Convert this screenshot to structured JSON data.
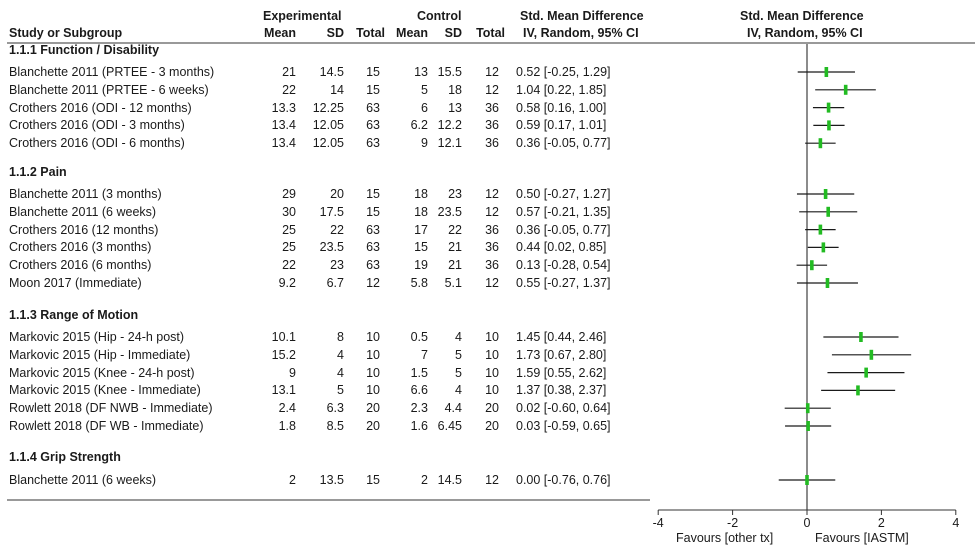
{
  "header": {
    "study_col": "Study or Subgroup",
    "experimental": "Experimental",
    "control": "Control",
    "smd_title": "Std. Mean Difference",
    "smd_method": "IV, Random, 95% CI",
    "plot_title": "Std. Mean Difference",
    "plot_method": "IV, Random, 95% CI",
    "mean": "Mean",
    "sd": "SD",
    "total": "Total"
  },
  "favours_left": "Favours [other tx]",
  "favours_right": "Favours [IASTM]",
  "chart_data": {
    "type": "forest",
    "xlim": [
      -4,
      4
    ],
    "xticks": [
      "-4",
      "-2",
      "0",
      "2",
      "4"
    ],
    "tick_values": [
      -4,
      -2,
      0,
      2,
      4
    ],
    "marker_color": "#22bb22",
    "groups": [
      {
        "title": "1.1.1 Function / Disability",
        "studies": [
          {
            "name": "Blanchette 2011 (PRTEE - 3 months)",
            "exp_mean": "21",
            "exp_sd": "14.5",
            "exp_total": "15",
            "ctrl_mean": "13",
            "ctrl_sd": "15.5",
            "ctrl_total": "12",
            "ci_text": "0.52 [-0.25, 1.29]",
            "smd": 0.52,
            "lower": -0.25,
            "upper": 1.29
          },
          {
            "name": "Blanchette 2011 (PRTEE - 6 weeks)",
            "exp_mean": "22",
            "exp_sd": "14",
            "exp_total": "15",
            "ctrl_mean": "5",
            "ctrl_sd": "18",
            "ctrl_total": "12",
            "ci_text": "1.04 [0.22, 1.85]",
            "smd": 1.04,
            "lower": 0.22,
            "upper": 1.85
          },
          {
            "name": "Crothers 2016 (ODI - 12 months)",
            "exp_mean": "13.3",
            "exp_sd": "12.25",
            "exp_total": "63",
            "ctrl_mean": "6",
            "ctrl_sd": "13",
            "ctrl_total": "36",
            "ci_text": "0.58 [0.16, 1.00]",
            "smd": 0.58,
            "lower": 0.16,
            "upper": 1.0
          },
          {
            "name": "Crothers 2016 (ODI - 3 months)",
            "exp_mean": "13.4",
            "exp_sd": "12.05",
            "exp_total": "63",
            "ctrl_mean": "6.2",
            "ctrl_sd": "12.2",
            "ctrl_total": "36",
            "ci_text": "0.59 [0.17, 1.01]",
            "smd": 0.59,
            "lower": 0.17,
            "upper": 1.01
          },
          {
            "name": "Crothers 2016 (ODI - 6 months)",
            "exp_mean": "13.4",
            "exp_sd": "12.05",
            "exp_total": "63",
            "ctrl_mean": "9",
            "ctrl_sd": "12.1",
            "ctrl_total": "36",
            "ci_text": "0.36 [-0.05, 0.77]",
            "smd": 0.36,
            "lower": -0.05,
            "upper": 0.77
          }
        ]
      },
      {
        "title": "1.1.2 Pain",
        "studies": [
          {
            "name": "Blanchette 2011 (3 months)",
            "exp_mean": "29",
            "exp_sd": "20",
            "exp_total": "15",
            "ctrl_mean": "18",
            "ctrl_sd": "23",
            "ctrl_total": "12",
            "ci_text": "0.50 [-0.27, 1.27]",
            "smd": 0.5,
            "lower": -0.27,
            "upper": 1.27
          },
          {
            "name": "Blanchette 2011 (6 weeks)",
            "exp_mean": "30",
            "exp_sd": "17.5",
            "exp_total": "15",
            "ctrl_mean": "18",
            "ctrl_sd": "23.5",
            "ctrl_total": "12",
            "ci_text": "0.57 [-0.21, 1.35]",
            "smd": 0.57,
            "lower": -0.21,
            "upper": 1.35
          },
          {
            "name": "Crothers 2016 (12 months)",
            "exp_mean": "25",
            "exp_sd": "22",
            "exp_total": "63",
            "ctrl_mean": "17",
            "ctrl_sd": "22",
            "ctrl_total": "36",
            "ci_text": "0.36 [-0.05, 0.77]",
            "smd": 0.36,
            "lower": -0.05,
            "upper": 0.77
          },
          {
            "name": "Crothers 2016 (3 months)",
            "exp_mean": "25",
            "exp_sd": "23.5",
            "exp_total": "63",
            "ctrl_mean": "15",
            "ctrl_sd": "21",
            "ctrl_total": "36",
            "ci_text": "0.44 [0.02, 0.85]",
            "smd": 0.44,
            "lower": 0.02,
            "upper": 0.85
          },
          {
            "name": "Crothers 2016 (6 months)",
            "exp_mean": "22",
            "exp_sd": "23",
            "exp_total": "63",
            "ctrl_mean": "19",
            "ctrl_sd": "21",
            "ctrl_total": "36",
            "ci_text": "0.13 [-0.28, 0.54]",
            "smd": 0.13,
            "lower": -0.28,
            "upper": 0.54
          },
          {
            "name": "Moon 2017 (Immediate)",
            "exp_mean": "9.2",
            "exp_sd": "6.7",
            "exp_total": "12",
            "ctrl_mean": "5.8",
            "ctrl_sd": "5.1",
            "ctrl_total": "12",
            "ci_text": "0.55 [-0.27, 1.37]",
            "smd": 0.55,
            "lower": -0.27,
            "upper": 1.37
          }
        ]
      },
      {
        "title": "1.1.3 Range of Motion",
        "studies": [
          {
            "name": "Markovic 2015 (Hip - 24-h post)",
            "exp_mean": "10.1",
            "exp_sd": "8",
            "exp_total": "10",
            "ctrl_mean": "0.5",
            "ctrl_sd": "4",
            "ctrl_total": "10",
            "ci_text": "1.45 [0.44, 2.46]",
            "smd": 1.45,
            "lower": 0.44,
            "upper": 2.46
          },
          {
            "name": "Markovic 2015 (Hip - Immediate)",
            "exp_mean": "15.2",
            "exp_sd": "4",
            "exp_total": "10",
            "ctrl_mean": "7",
            "ctrl_sd": "5",
            "ctrl_total": "10",
            "ci_text": "1.73 [0.67, 2.80]",
            "smd": 1.73,
            "lower": 0.67,
            "upper": 2.8
          },
          {
            "name": "Markovic 2015 (Knee - 24-h post)",
            "exp_mean": "9",
            "exp_sd": "4",
            "exp_total": "10",
            "ctrl_mean": "1.5",
            "ctrl_sd": "5",
            "ctrl_total": "10",
            "ci_text": "1.59 [0.55, 2.62]",
            "smd": 1.59,
            "lower": 0.55,
            "upper": 2.62
          },
          {
            "name": "Markovic 2015 (Knee - Immediate)",
            "exp_mean": "13.1",
            "exp_sd": "5",
            "exp_total": "10",
            "ctrl_mean": "6.6",
            "ctrl_sd": "4",
            "ctrl_total": "10",
            "ci_text": "1.37 [0.38, 2.37]",
            "smd": 1.37,
            "lower": 0.38,
            "upper": 2.37
          },
          {
            "name": "Rowlett 2018 (DF NWB - Immediate)",
            "exp_mean": "2.4",
            "exp_sd": "6.3",
            "exp_total": "20",
            "ctrl_mean": "2.3",
            "ctrl_sd": "4.4",
            "ctrl_total": "20",
            "ci_text": "0.02 [-0.60, 0.64]",
            "smd": 0.02,
            "lower": -0.6,
            "upper": 0.64
          },
          {
            "name": "Rowlett 2018 (DF WB - Immediate)",
            "exp_mean": "1.8",
            "exp_sd": "8.5",
            "exp_total": "20",
            "ctrl_mean": "1.6",
            "ctrl_sd": "6.45",
            "ctrl_total": "20",
            "ci_text": "0.03 [-0.59, 0.65]",
            "smd": 0.03,
            "lower": -0.59,
            "upper": 0.65
          }
        ]
      },
      {
        "title": "1.1.4 Grip Strength",
        "studies": [
          {
            "name": "Blanchette 2011 (6 weeks)",
            "exp_mean": "2",
            "exp_sd": "13.5",
            "exp_total": "15",
            "ctrl_mean": "2",
            "ctrl_sd": "14.5",
            "ctrl_total": "12",
            "ci_text": "0.00 [-0.76, 0.76]",
            "smd": 0.0,
            "lower": -0.76,
            "upper": 0.76
          }
        ]
      }
    ]
  }
}
